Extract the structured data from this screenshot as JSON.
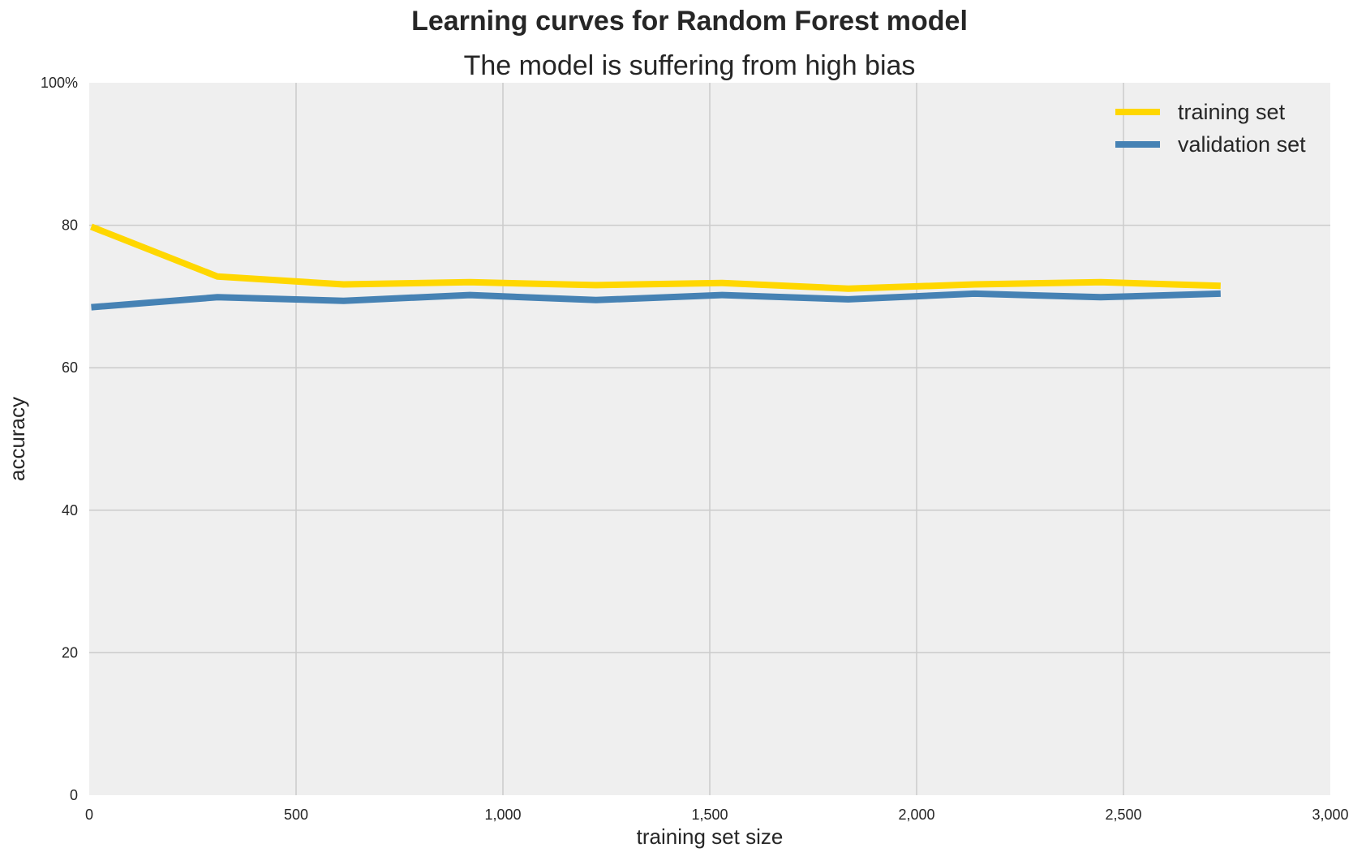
{
  "chart_data": {
    "type": "line",
    "title": "Learning curves for Random Forest model",
    "subtitle": "The model is suffering from high bias",
    "xlabel": "training set size",
    "ylabel": "accuracy",
    "xlim": [
      0,
      3000
    ],
    "ylim": [
      0,
      100
    ],
    "x_ticks": [
      0,
      500,
      1000,
      1500,
      2000,
      2500,
      3000
    ],
    "x_tick_labels": [
      "0",
      "500",
      "1,000",
      "1,500",
      "2,000",
      "2,500",
      "3,000"
    ],
    "y_ticks": [
      0,
      20,
      40,
      60,
      80,
      100
    ],
    "y_tick_labels": [
      "0",
      "20",
      "40",
      "60",
      "80",
      "100%"
    ],
    "grid": true,
    "background": "#efefef",
    "legend_position": "top-right",
    "x": [
      5,
      310,
      615,
      920,
      1225,
      1530,
      1835,
      2140,
      2445,
      2735
    ],
    "series": [
      {
        "name": "training set",
        "color": "#ffd700",
        "values": [
          79.8,
          72.8,
          71.7,
          72.0,
          71.6,
          71.9,
          71.1,
          71.7,
          72.0,
          71.5
        ]
      },
      {
        "name": "validation set",
        "color": "#4682b4",
        "values": [
          68.5,
          69.9,
          69.4,
          70.2,
          69.5,
          70.2,
          69.6,
          70.4,
          69.9,
          70.4
        ]
      }
    ]
  }
}
